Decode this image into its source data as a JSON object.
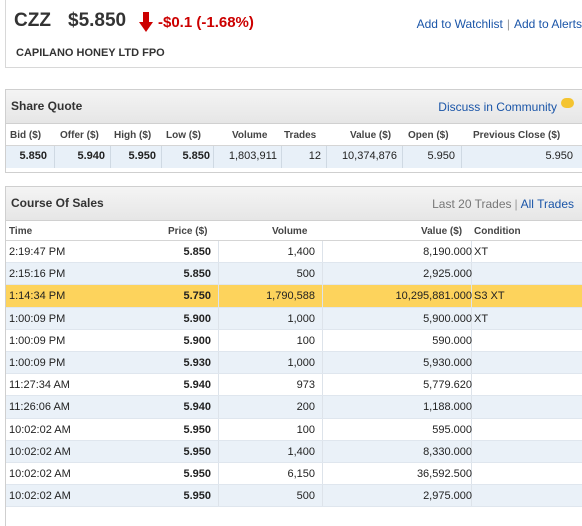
{
  "header": {
    "ticker": "CZZ",
    "price": "$5.850",
    "change": "-$0.1 (-1.68%)",
    "company": "CAPILANO HONEY LTD FPO",
    "watchlist_link": "Add to Watchlist",
    "alerts_link": "Add to Alerts",
    "separator": "|",
    "change_color": "#cc0000"
  },
  "share_quote": {
    "title": "Share Quote",
    "discuss_link": "Discuss in Community",
    "columns": [
      "Bid ($)",
      "Offer ($)",
      "High ($)",
      "Low ($)",
      "Volume",
      "Trades",
      "Value ($)",
      "Open ($)",
      "Previous Close ($)"
    ],
    "values": [
      "5.850",
      "5.940",
      "5.950",
      "5.850",
      "1,803,911",
      "12",
      "10,374,876",
      "5.950",
      "5.950"
    ]
  },
  "course_of_sales": {
    "title": "Course Of Sales",
    "last_trades_label": "Last 20 Trades",
    "separator": "|",
    "all_trades_link": "All Trades",
    "columns": [
      "Time",
      "Price ($)",
      "Volume",
      "Value ($)",
      "Condition"
    ],
    "rows": [
      {
        "time": "2:19:47 PM",
        "price": "5.850",
        "volume": "1,400",
        "value": "8,190.000",
        "condition": "XT"
      },
      {
        "time": "2:15:16 PM",
        "price": "5.850",
        "volume": "500",
        "value": "2,925.000",
        "condition": ""
      },
      {
        "time": "1:14:34 PM",
        "price": "5.750",
        "volume": "1,790,588",
        "value": "10,295,881.000",
        "condition": "S3 XT"
      },
      {
        "time": "1:00:09 PM",
        "price": "5.900",
        "volume": "1,000",
        "value": "5,900.000",
        "condition": "XT"
      },
      {
        "time": "1:00:09 PM",
        "price": "5.900",
        "volume": "100",
        "value": "590.000",
        "condition": ""
      },
      {
        "time": "1:00:09 PM",
        "price": "5.930",
        "volume": "1,000",
        "value": "5,930.000",
        "condition": ""
      },
      {
        "time": "11:27:34 AM",
        "price": "5.940",
        "volume": "973",
        "value": "5,779.620",
        "condition": ""
      },
      {
        "time": "11:26:06 AM",
        "price": "5.940",
        "volume": "200",
        "value": "1,188.000",
        "condition": ""
      },
      {
        "time": "10:02:02 AM",
        "price": "5.950",
        "volume": "100",
        "value": "595.000",
        "condition": ""
      },
      {
        "time": "10:02:02 AM",
        "price": "5.950",
        "volume": "1,400",
        "value": "8,330.000",
        "condition": ""
      },
      {
        "time": "10:02:02 AM",
        "price": "5.950",
        "volume": "6,150",
        "value": "36,592.500",
        "condition": ""
      },
      {
        "time": "10:02:02 AM",
        "price": "5.950",
        "volume": "500",
        "value": "2,975.000",
        "condition": ""
      }
    ],
    "highlight_row": 2,
    "highlight_color": "#fdd35c"
  }
}
